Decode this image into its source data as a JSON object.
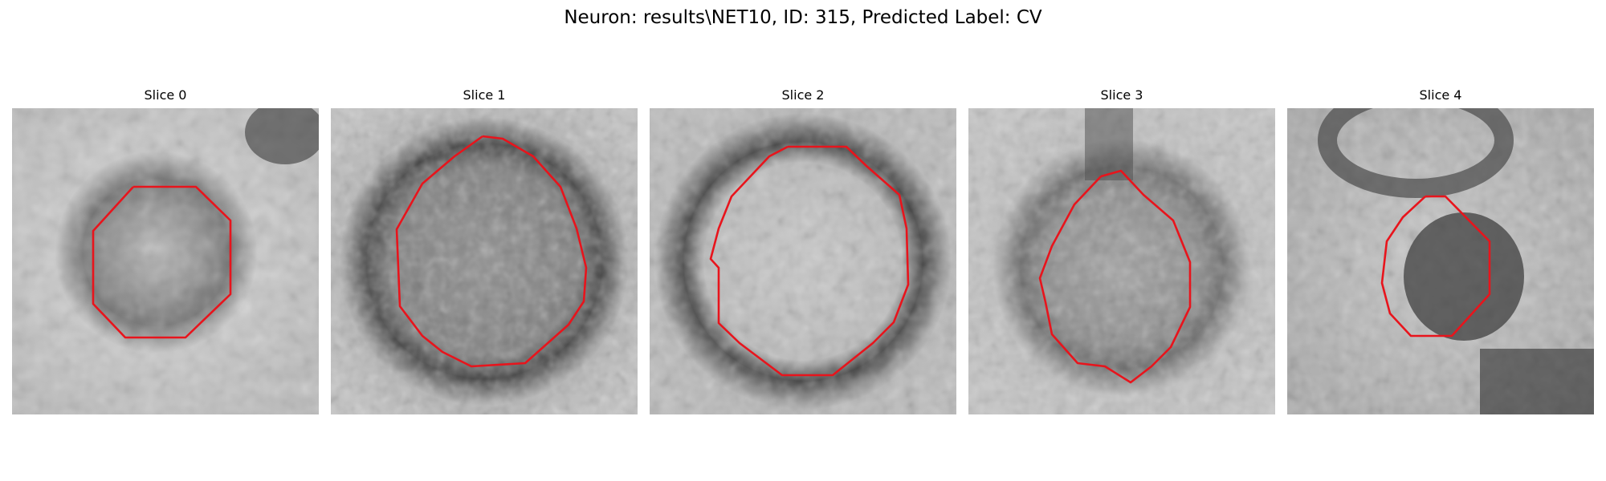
{
  "figure": {
    "title": "Neuron: results\\NET10, ID: 315, Predicted Label: CV"
  },
  "colors": {
    "contour": "#e8141c"
  },
  "panels": [
    {
      "title": "Slice 0"
    },
    {
      "title": "Slice 1"
    },
    {
      "title": "Slice 2"
    },
    {
      "title": "Slice 3"
    },
    {
      "title": "Slice 4"
    }
  ]
}
